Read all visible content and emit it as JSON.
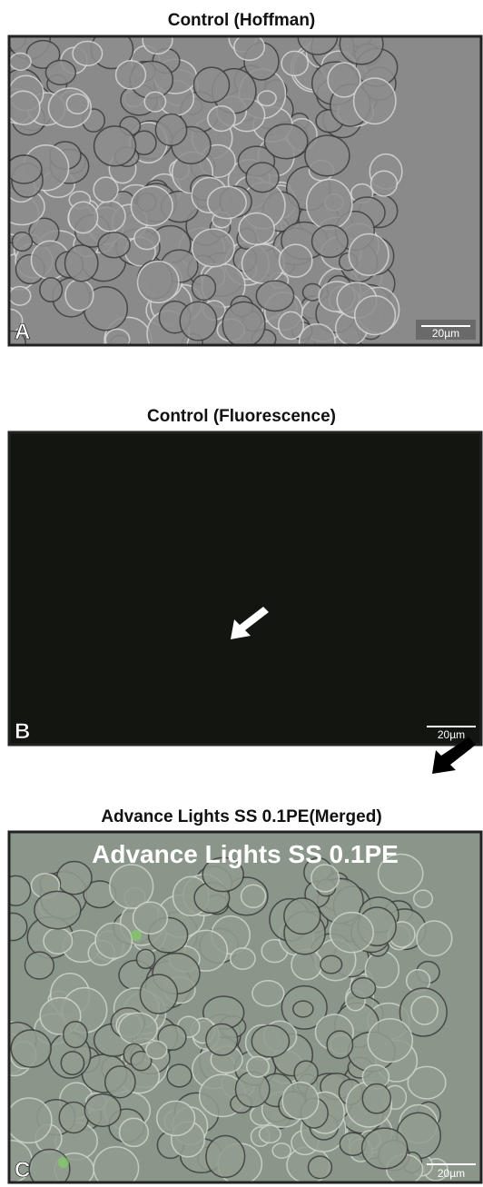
{
  "panels": [
    {
      "title": "Control (Hoffman)",
      "letter": "A",
      "scale_bar": "20µm"
    },
    {
      "title": "Control (Fluorescence)",
      "letter": "B",
      "scale_bar": "20µm"
    },
    {
      "title": "Advance Lights SS 0.1PE(Merged)",
      "letter": "C",
      "scale_bar": "20µm",
      "overlay": "Advance Lights SS 0.1PE"
    }
  ]
}
